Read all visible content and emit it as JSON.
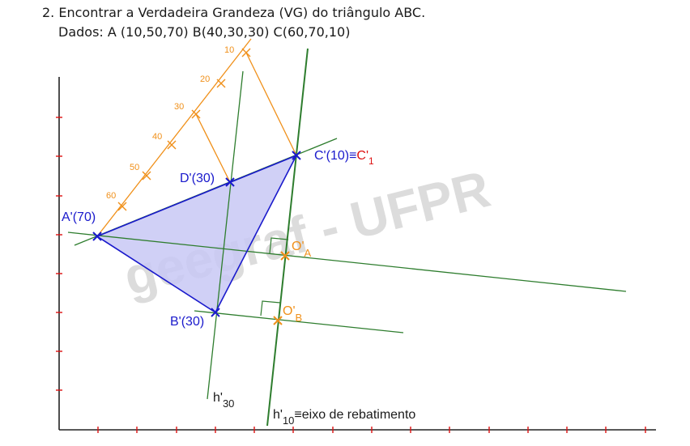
{
  "header": {
    "title": "2. Encontrar a Verdadeira Grandeza (VG) do triângulo ABC.",
    "given": "Dados: A (10,50,70)  B(40,30,30) C(60,70,10)"
  },
  "watermark": "geegraf - UFPR",
  "scale_ticks": [
    "10",
    "20",
    "30",
    "40",
    "50",
    "60"
  ],
  "points": {
    "A": {
      "label": "A'(70)"
    },
    "B": {
      "label": "B'(30)"
    },
    "C": {
      "label_main": "C'(10)≡",
      "label_red": "C'",
      "label_sub": "1"
    },
    "D": {
      "label": "D'(30)"
    },
    "OA": {
      "label": "O'",
      "sub": "A"
    },
    "OB": {
      "label": "O'",
      "sub": "B"
    }
  },
  "lines": {
    "h30": {
      "label": "h'",
      "sub": "30"
    },
    "h10": {
      "label": "h'",
      "sub": "10",
      "suffix": "≡eixo de rebatimento"
    }
  },
  "colors": {
    "blue": "#1a1acc",
    "orange": "#f0901a",
    "green": "#2e7d2e",
    "red": "#dd1111",
    "fill": "#c8c8f4",
    "axis": "#222222"
  }
}
